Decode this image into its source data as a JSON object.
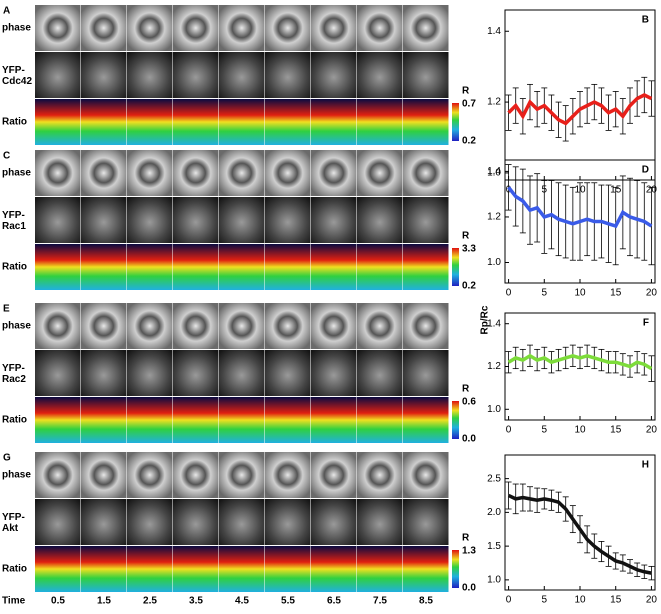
{
  "figure": {
    "panels": [
      {
        "letter": "A",
        "rows": [
          "phase",
          "YFP-\nCdc42",
          "Ratio"
        ],
        "scale": {
          "name": "R",
          "max": "0.7",
          "min": "0.2"
        }
      },
      {
        "letter": "C",
        "rows": [
          "phase",
          "YFP-\nRac1",
          "Ratio"
        ],
        "scale": {
          "name": "R",
          "max": "3.3",
          "min": "0.2"
        }
      },
      {
        "letter": "E",
        "rows": [
          "phase",
          "YFP-\nRac2",
          "Ratio"
        ],
        "scale": {
          "name": "R",
          "max": "0.6",
          "min": "0.0"
        }
      },
      {
        "letter": "G",
        "rows": [
          "phase",
          "YFP-\nAkt",
          "Ratio"
        ],
        "scale": {
          "name": "R",
          "max": "1.3",
          "min": "0.0"
        }
      }
    ],
    "time_title": "Time",
    "times": [
      "0.5",
      "1.5",
      "2.5",
      "3.5",
      "4.5",
      "5.5",
      "6.5",
      "7.5",
      "8.5"
    ],
    "shared_ylabel": "Rp/Rc"
  },
  "chart_data": [
    {
      "type": "line",
      "title": "B",
      "x": [
        0,
        1,
        2,
        3,
        4,
        5,
        6,
        7,
        8,
        9,
        10,
        11,
        12,
        13,
        14,
        15,
        16,
        17,
        18,
        19,
        20
      ],
      "series": [
        {
          "color": "#e8201a",
          "values": [
            1.17,
            1.19,
            1.16,
            1.2,
            1.18,
            1.19,
            1.17,
            1.15,
            1.14,
            1.16,
            1.18,
            1.19,
            1.2,
            1.19,
            1.17,
            1.18,
            1.16,
            1.19,
            1.21,
            1.22,
            1.21
          ],
          "errors": [
            0.05,
            0.05,
            0.05,
            0.05,
            0.05,
            0.05,
            0.05,
            0.05,
            0.05,
            0.05,
            0.05,
            0.05,
            0.05,
            0.05,
            0.05,
            0.05,
            0.05,
            0.05,
            0.05,
            0.05,
            0.05
          ]
        }
      ],
      "xlim": [
        -0.5,
        20.5
      ],
      "ylim": [
        0.98,
        1.46
      ],
      "xticks": [
        0,
        5,
        10,
        15,
        20
      ],
      "yticks": [
        {
          "value": 1,
          "label": "1.0"
        },
        1.2,
        1.4
      ]
    },
    {
      "type": "line",
      "title": "D",
      "x": [
        0,
        1,
        2,
        3,
        4,
        5,
        6,
        7,
        8,
        9,
        10,
        11,
        12,
        13,
        14,
        15,
        16,
        17,
        18,
        19,
        20
      ],
      "series": [
        {
          "color": "#3a5be8",
          "values": [
            1.33,
            1.29,
            1.27,
            1.23,
            1.24,
            1.2,
            1.21,
            1.19,
            1.18,
            1.17,
            1.18,
            1.19,
            1.18,
            1.18,
            1.17,
            1.16,
            1.22,
            1.2,
            1.19,
            1.18,
            1.16
          ],
          "errors": [
            0.1,
            0.13,
            0.14,
            0.15,
            0.15,
            0.16,
            0.15,
            0.16,
            0.16,
            0.16,
            0.17,
            0.16,
            0.17,
            0.16,
            0.17,
            0.17,
            0.16,
            0.17,
            0.17,
            0.17,
            0.17
          ]
        }
      ],
      "xlim": [
        -0.5,
        20.5
      ],
      "ylim": [
        0.91,
        1.45
      ],
      "xticks": [
        0,
        5,
        10,
        15,
        20
      ],
      "yticks": [
        {
          "value": 1,
          "label": "1.0"
        },
        1.2,
        1.4
      ]
    },
    {
      "type": "line",
      "title": "F",
      "x": [
        0,
        1,
        2,
        3,
        4,
        5,
        6,
        7,
        8,
        9,
        10,
        11,
        12,
        13,
        14,
        15,
        16,
        17,
        18,
        19,
        20
      ],
      "series": [
        {
          "color": "#7ddc3a",
          "values": [
            1.22,
            1.24,
            1.23,
            1.25,
            1.23,
            1.24,
            1.22,
            1.23,
            1.24,
            1.25,
            1.24,
            1.25,
            1.24,
            1.23,
            1.22,
            1.22,
            1.21,
            1.2,
            1.22,
            1.21,
            1.19
          ],
          "errors": [
            0.05,
            0.05,
            0.05,
            0.05,
            0.05,
            0.05,
            0.05,
            0.05,
            0.05,
            0.05,
            0.05,
            0.05,
            0.05,
            0.05,
            0.05,
            0.05,
            0.05,
            0.05,
            0.05,
            0.05,
            0.06
          ]
        }
      ],
      "xlim": [
        -0.5,
        20.5
      ],
      "ylim": [
        0.95,
        1.45
      ],
      "xticks": [
        0,
        5,
        10,
        15,
        20
      ],
      "yticks": [
        {
          "value": 1,
          "label": "1.0"
        },
        1.2,
        1.4
      ]
    },
    {
      "type": "line",
      "title": "H",
      "x": [
        0,
        1,
        2,
        3,
        4,
        5,
        6,
        7,
        8,
        9,
        10,
        11,
        12,
        13,
        14,
        15,
        16,
        17,
        18,
        19,
        20
      ],
      "series": [
        {
          "color": "#111111",
          "values": [
            2.25,
            2.2,
            2.22,
            2.2,
            2.18,
            2.2,
            2.18,
            2.15,
            2.05,
            1.9,
            1.75,
            1.6,
            1.5,
            1.42,
            1.35,
            1.28,
            1.25,
            1.2,
            1.15,
            1.12,
            1.1
          ],
          "errors": [
            0.2,
            0.22,
            0.2,
            0.18,
            0.18,
            0.15,
            0.15,
            0.15,
            0.18,
            0.2,
            0.2,
            0.2,
            0.18,
            0.15,
            0.15,
            0.12,
            0.12,
            0.1,
            0.1,
            0.1,
            0.1
          ]
        }
      ],
      "xlim": [
        -0.5,
        20.5
      ],
      "ylim": [
        0.85,
        2.85
      ],
      "xticks": [
        0,
        5,
        10,
        15,
        20
      ],
      "yticks": [
        {
          "value": 1,
          "label": "1.0"
        },
        1.5,
        {
          "value": 2,
          "label": "2.0"
        },
        2.5
      ]
    }
  ]
}
